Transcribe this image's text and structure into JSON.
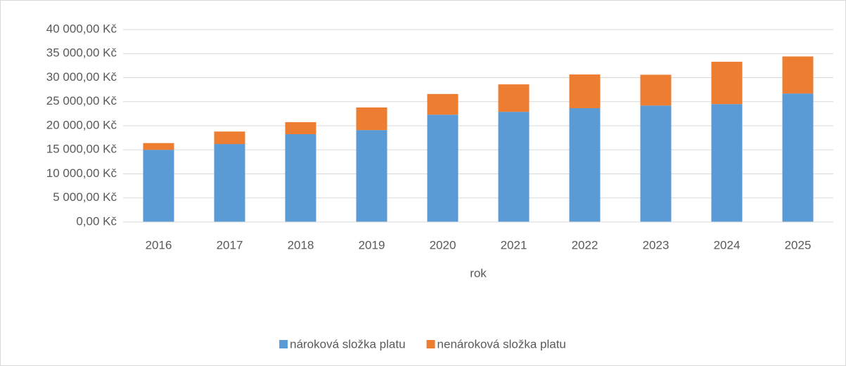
{
  "chart_data": {
    "type": "bar",
    "stacked": true,
    "x_label": "rok",
    "categories": [
      "2016",
      "2017",
      "2018",
      "2019",
      "2020",
      "2021",
      "2022",
      "2023",
      "2024",
      "2025"
    ],
    "series": [
      {
        "name": "nároková složka platu",
        "color": "#5b9bd5",
        "values": [
          15000,
          16200,
          18250,
          19100,
          22300,
          22900,
          23650,
          24200,
          24500,
          26700
        ]
      },
      {
        "name": "nenároková složka platu",
        "color": "#ed7d31",
        "values": [
          1400,
          2600,
          2500,
          4700,
          4300,
          5700,
          7000,
          6400,
          8800,
          7700
        ]
      }
    ],
    "ylim": [
      0,
      40000
    ],
    "yticks": [
      {
        "value": 0,
        "label": "0,00 Kč"
      },
      {
        "value": 5000,
        "label": "5 000,00 Kč"
      },
      {
        "value": 10000,
        "label": "10 000,00 Kč"
      },
      {
        "value": 15000,
        "label": "15 000,00 Kč"
      },
      {
        "value": 20000,
        "label": "20 000,00 Kč"
      },
      {
        "value": 25000,
        "label": "25 000,00 Kč"
      },
      {
        "value": 30000,
        "label": "30 000,00 Kč"
      },
      {
        "value": 35000,
        "label": "35 000,00 Kč"
      },
      {
        "value": 40000,
        "label": "40 000,00 Kč"
      }
    ],
    "grid": true,
    "legend": "bottom"
  }
}
